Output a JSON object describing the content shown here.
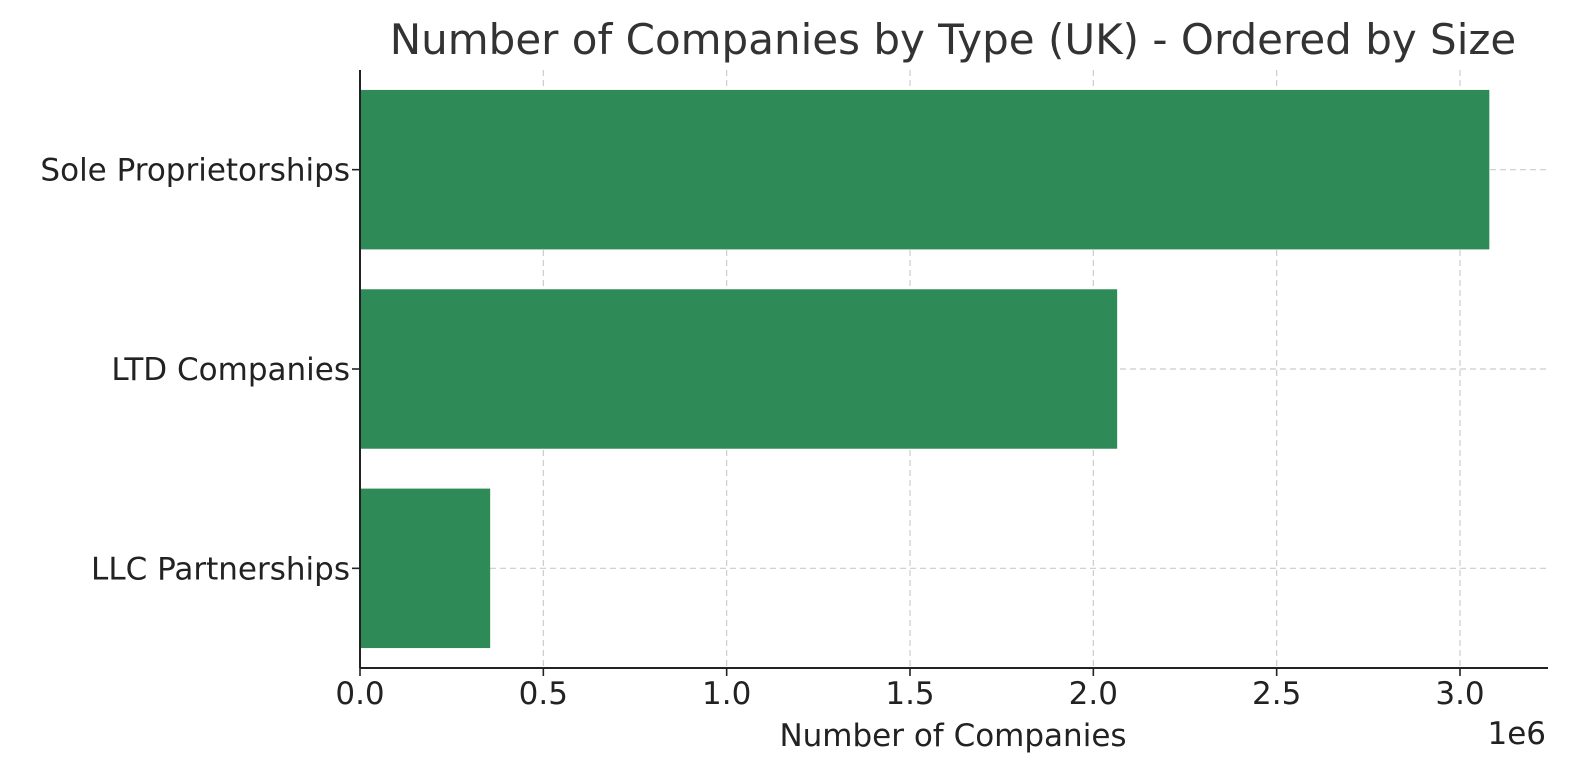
{
  "chart_data": {
    "type": "bar",
    "orientation": "horizontal",
    "title": "Number of Companies by Type (UK) - Ordered by Size",
    "xlabel": "Number of Companies",
    "ylabel": "",
    "x_scale_label": "1e6",
    "categories": [
      "Sole Proprietorships",
      "LTD Companies",
      "LLC Partnerships"
    ],
    "values": [
      3080000,
      2065000,
      355000
    ],
    "xlim": [
      0,
      3240000
    ],
    "xticks": [
      0,
      500000,
      1000000,
      1500000,
      2000000,
      2500000,
      3000000
    ],
    "xtick_labels": [
      "0.0",
      "0.5",
      "1.0",
      "1.5",
      "2.0",
      "2.5",
      "3.0"
    ],
    "grid": true,
    "legend": "none",
    "bar_color": "#2e8b57"
  }
}
